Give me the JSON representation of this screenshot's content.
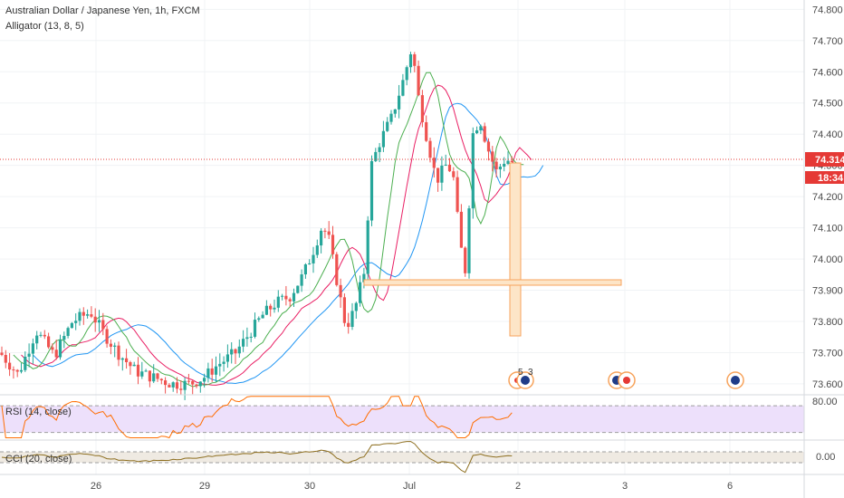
{
  "header": {
    "symbol_title": "Australian Dollar / Japanese Yen, 1h, FXCM",
    "indicator_label": "Alligator (13, 8, 5)"
  },
  "price_axis": {
    "ticks": [
      "74.800",
      "74.700",
      "74.600",
      "74.500",
      "74.400",
      "74.300",
      "74.200",
      "74.100",
      "74.000",
      "73.900",
      "73.800",
      "73.700",
      "73.600"
    ],
    "range": [
      73.565,
      74.83
    ],
    "current_price": "74.314",
    "countdown": "18:34"
  },
  "time_axis": {
    "labels": [
      "26",
      "29",
      "30",
      "Jul",
      "2",
      "3",
      "6"
    ]
  },
  "rsi": {
    "label": "RSI (14, close)",
    "tick": "80.00",
    "levels": [
      70,
      30
    ],
    "range": [
      20,
      85
    ]
  },
  "cci": {
    "label": "CCI (20, close)",
    "tick": "0.00",
    "levels": [
      100,
      -100
    ],
    "range": [
      -300,
      300
    ]
  },
  "events": {
    "badge_left": "5",
    "badge_right": "3"
  },
  "colors": {
    "up": "#26a69a",
    "down": "#ef5350",
    "jaw": "#2196f3",
    "teeth": "#e91e63",
    "lips": "#4caf50",
    "price_line": "#e53935",
    "rsi_line": "#ff6d00",
    "rsi_band": "#ede0fb",
    "cci_line": "#8d6e1f",
    "cci_band": "#efeae2",
    "annotation_fill": "#fde5c7",
    "annotation_stroke": "#f7a35c"
  },
  "chart_data": {
    "type": "candlestick",
    "title": "Australian Dollar / Japanese Yen, 1h, FXCM",
    "y_range": [
      73.565,
      74.83
    ],
    "x_labels": [
      "26",
      "29",
      "30",
      "Jul",
      "2",
      "3",
      "6"
    ],
    "price_last": 74.314,
    "key_levels": {
      "high": 74.7,
      "low": 73.61,
      "annotated_box_top": 74.31,
      "annotated_box_bottom": 73.745,
      "annotated_line_level": 73.92
    },
    "series": [
      {
        "name": "Alligator (13, 8, 5)",
        "values": []
      },
      {
        "name": "RSI (14, close)",
        "values": []
      },
      {
        "name": "CCI (20, close)",
        "values": []
      }
    ]
  }
}
